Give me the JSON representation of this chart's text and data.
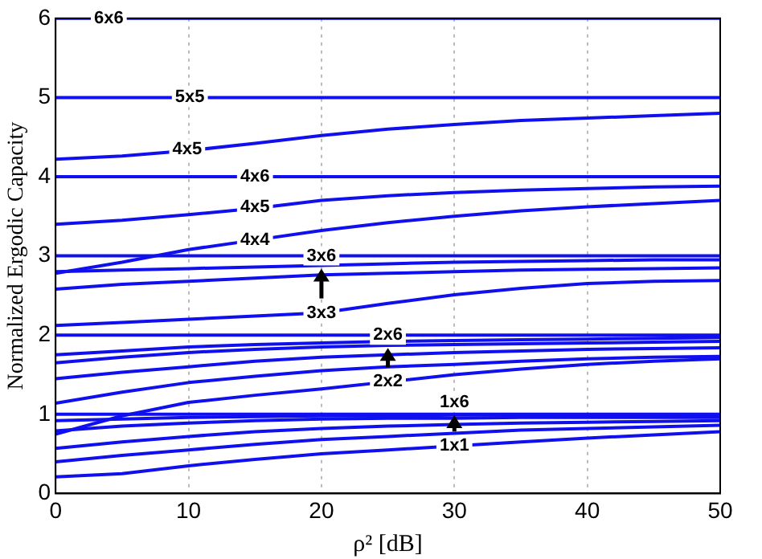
{
  "chart_data": {
    "type": "line",
    "xlabel": "ρ² [dB]",
    "ylabel": "Normalized Ergodic Capacity",
    "x": [
      0,
      5,
      10,
      15,
      20,
      25,
      30,
      35,
      40,
      45,
      50
    ],
    "xlim": [
      0,
      50
    ],
    "xticks": [
      0,
      10,
      20,
      30,
      40,
      50
    ],
    "ylim": [
      0,
      6
    ],
    "yticks": [
      0,
      1,
      2,
      3,
      4,
      5,
      6
    ],
    "grid": "x",
    "legend": false,
    "marker": "none",
    "line_style": "solid",
    "series": [
      {
        "color": "#1010ee",
        "values": [
          6,
          6,
          6,
          6,
          6,
          6,
          6,
          6,
          6,
          6,
          6
        ]
      },
      {
        "color": "#1010ee",
        "values": [
          5,
          5,
          5,
          5,
          5,
          5,
          5,
          5,
          5,
          5,
          5
        ]
      },
      {
        "color": "#1010ee",
        "values": [
          4.22,
          4.26,
          4.33,
          4.42,
          4.52,
          4.6,
          4.66,
          4.71,
          4.74,
          4.77,
          4.8
        ]
      },
      {
        "color": "#1010ee",
        "values": [
          4,
          4,
          4,
          4,
          4,
          4,
          4,
          4,
          4,
          4,
          4
        ]
      },
      {
        "color": "#1010ee",
        "values": [
          3.4,
          3.45,
          3.52,
          3.6,
          3.7,
          3.76,
          3.8,
          3.83,
          3.85,
          3.87,
          3.88
        ]
      },
      {
        "color": "#1010ee",
        "values": [
          2.78,
          2.92,
          3.08,
          3.2,
          3.32,
          3.42,
          3.5,
          3.57,
          3.62,
          3.66,
          3.7
        ]
      },
      {
        "color": "#1010ee",
        "values": [
          3,
          3,
          3,
          3,
          3,
          3,
          3,
          3,
          3,
          3,
          3
        ]
      },
      {
        "color": "#1010ee",
        "values": [
          2.8,
          2.82,
          2.84,
          2.86,
          2.88,
          2.9,
          2.92,
          2.93,
          2.94,
          2.95,
          2.95
        ]
      },
      {
        "color": "#1010ee",
        "values": [
          2.58,
          2.64,
          2.68,
          2.72,
          2.76,
          2.78,
          2.8,
          2.82,
          2.83,
          2.84,
          2.85
        ]
      },
      {
        "color": "#1010ee",
        "values": [
          2.12,
          2.16,
          2.2,
          2.24,
          2.28,
          2.4,
          2.51,
          2.59,
          2.65,
          2.68,
          2.69
        ]
      },
      {
        "color": "#1010ee",
        "values": [
          2,
          2,
          2,
          2,
          2,
          2,
          2,
          2,
          2,
          2,
          2
        ]
      },
      {
        "color": "#1010ee",
        "values": [
          1.75,
          1.8,
          1.85,
          1.88,
          1.9,
          1.92,
          1.93,
          1.94,
          1.95,
          1.96,
          1.97
        ]
      },
      {
        "color": "#1010ee",
        "values": [
          1.65,
          1.72,
          1.78,
          1.82,
          1.85,
          1.87,
          1.88,
          1.89,
          1.9,
          1.91,
          1.92
        ]
      },
      {
        "color": "#1010ee",
        "values": [
          1.45,
          1.53,
          1.6,
          1.67,
          1.72,
          1.75,
          1.78,
          1.8,
          1.82,
          1.83,
          1.84
        ]
      },
      {
        "color": "#1010ee",
        "values": [
          1.14,
          1.28,
          1.4,
          1.48,
          1.55,
          1.6,
          1.63,
          1.67,
          1.7,
          1.72,
          1.73
        ]
      },
      {
        "color": "#1010ee",
        "values": [
          0.75,
          0.98,
          1.15,
          1.24,
          1.32,
          1.41,
          1.5,
          1.57,
          1.63,
          1.67,
          1.7
        ]
      },
      {
        "color": "#1010ee",
        "values": [
          1,
          1,
          1,
          1,
          1,
          1,
          1,
          1,
          1,
          1,
          1
        ]
      },
      {
        "color": "#1010ee",
        "values": [
          0.92,
          0.94,
          0.96,
          0.97,
          0.98,
          0.98,
          0.99,
          0.99,
          0.99,
          0.99,
          0.99
        ]
      },
      {
        "color": "#1010ee",
        "values": [
          0.79,
          0.85,
          0.89,
          0.92,
          0.94,
          0.95,
          0.95,
          0.96,
          0.96,
          0.96,
          0.96
        ]
      },
      {
        "color": "#1010ee",
        "values": [
          0.57,
          0.65,
          0.72,
          0.78,
          0.82,
          0.85,
          0.87,
          0.89,
          0.9,
          0.91,
          0.92
        ]
      },
      {
        "color": "#1010ee",
        "values": [
          0.4,
          0.48,
          0.55,
          0.62,
          0.68,
          0.72,
          0.76,
          0.8,
          0.82,
          0.84,
          0.86
        ]
      },
      {
        "color": "#1010ee",
        "values": [
          0.21,
          0.25,
          0.35,
          0.43,
          0.5,
          0.55,
          0.6,
          0.65,
          0.7,
          0.74,
          0.78
        ]
      }
    ],
    "annotations": [
      {
        "text": "6x6",
        "x": 4,
        "y": 6
      },
      {
        "text": "5x5",
        "x": 10.1,
        "y": 5
      },
      {
        "text": "4x5",
        "x": 9.9,
        "y": 4.35
      },
      {
        "text": "4x6",
        "x": 15,
        "y": 4
      },
      {
        "text": "4x5",
        "x": 15,
        "y": 3.62
      },
      {
        "text": "4x4",
        "x": 15,
        "y": 3.2
      },
      {
        "text": "3x6",
        "x": 20,
        "y": 3
      },
      {
        "text": "3x3",
        "x": 20,
        "y": 2.28
      },
      {
        "text": "2x6",
        "x": 25,
        "y": 2
      },
      {
        "text": "2x2",
        "x": 25,
        "y": 1.41
      },
      {
        "text": "1x6",
        "x": 30,
        "y": 1.15
      },
      {
        "text": "1x1",
        "x": 30,
        "y": 0.6
      }
    ]
  }
}
